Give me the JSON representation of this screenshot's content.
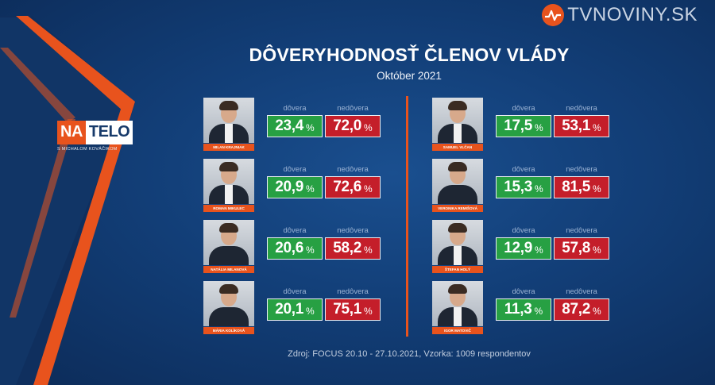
{
  "brand": {
    "name": "TVNOVINY.SK",
    "icon": "tvnoviny-logo-icon",
    "accent": "#e8531d"
  },
  "show": {
    "na": "NA",
    "telo": "TELO",
    "subtitle": "S MICHALOM KOVÁČIKOM"
  },
  "header": {
    "title": "DÔVERYHODNOSŤ ČLENOV VLÁDY",
    "subtitle": "Október 2021"
  },
  "labels": {
    "trust": "dôvera",
    "distrust": "nedôvera",
    "percent": "%"
  },
  "colors": {
    "trust": "#27a043",
    "distrust": "#c41e2a",
    "name_bar": "#e8531d",
    "divider": "#e8531d"
  },
  "members_left": [
    {
      "name": "MILAN KRAJNIAK",
      "trust": "23,4",
      "distrust": "72,0"
    },
    {
      "name": "ROMAN MIKULEC",
      "trust": "20,9",
      "distrust": "72,6"
    },
    {
      "name": "NATÁLIA MILANOVÁ",
      "trust": "20,6",
      "distrust": "58,2"
    },
    {
      "name": "MÁRIA KOLÍKOVÁ",
      "trust": "20,1",
      "distrust": "75,1"
    }
  ],
  "members_right": [
    {
      "name": "SAMUEL VLČAN",
      "trust": "17,5",
      "distrust": "53,1"
    },
    {
      "name": "VERONIKA REMIŠOVÁ",
      "trust": "15,3",
      "distrust": "81,5"
    },
    {
      "name": "ŠTEFAN HOLÝ",
      "trust": "12,9",
      "distrust": "57,8"
    },
    {
      "name": "IGOR MATOVIČ",
      "trust": "11,3",
      "distrust": "87,2"
    }
  ],
  "footer": {
    "source": "Zdroj: FOCUS 20.10 - 27.10.2021, Vzorka: 1009 respondentov"
  }
}
